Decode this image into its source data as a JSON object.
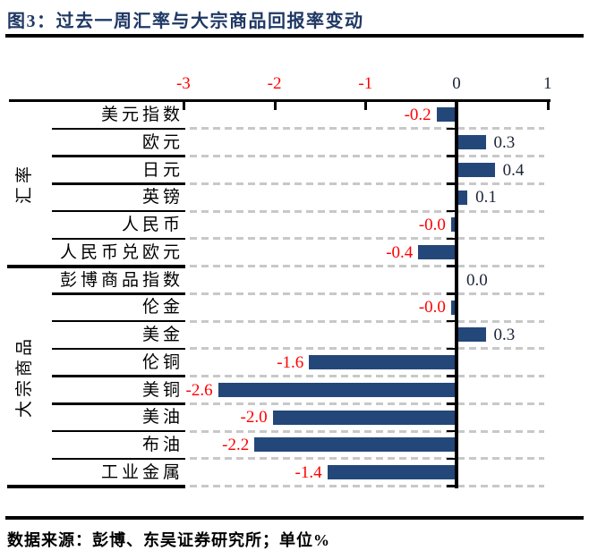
{
  "figure": {
    "title": "图3：过去一周汇率与大宗商品回报率变动",
    "source_note": "数据来源：彭博、东吴证券研究所；单位%"
  },
  "colors": {
    "title": "#1F3864",
    "bar": "#24477A",
    "negative_text": "#FF0000",
    "positive_text": "#1B2437",
    "axis_line": "#000000",
    "gridline_dash": "#C8C8C8",
    "source_text": "#000000"
  },
  "chart_data": {
    "type": "bar",
    "orientation": "horizontal",
    "title": "过去一周汇率与大宗商品回报率变动",
    "unit": "%",
    "xlim": [
      -3,
      1
    ],
    "x_ticks": [
      {
        "label": "-3",
        "value": -3
      },
      {
        "label": "-2",
        "value": -2
      },
      {
        "label": "-1",
        "value": -1
      },
      {
        "label": "0",
        "value": 0
      },
      {
        "label": "1",
        "value": 1
      }
    ],
    "grid": "dashed-horizontal",
    "legend": "none",
    "groups": [
      {
        "name": "汇率",
        "rows": [
          {
            "label": "美元指数",
            "display": "-0.2",
            "value": -0.2
          },
          {
            "label": "欧元",
            "display": "0.3",
            "value": 0.3
          },
          {
            "label": "日元",
            "display": "0.4",
            "value": 0.4
          },
          {
            "label": "英镑",
            "display": "0.1",
            "value": 0.1
          },
          {
            "label": "人民币",
            "display": "-0.0",
            "value": -0.04
          },
          {
            "label": "人民币兑欧元",
            "display": "-0.4",
            "value": -0.4
          }
        ]
      },
      {
        "name": "大宗商品",
        "rows": [
          {
            "label": "彭博商品指数",
            "display": "0.0",
            "value": 0.0
          },
          {
            "label": "伦金",
            "display": "-0.0",
            "value": -0.04
          },
          {
            "label": "美金",
            "display": "0.3",
            "value": 0.3
          },
          {
            "label": "伦铜",
            "display": "-1.6",
            "value": -1.6
          },
          {
            "label": "美铜",
            "display": "-2.6",
            "value": -2.6
          },
          {
            "label": "美油",
            "display": "-2.0",
            "value": -2.0
          },
          {
            "label": "布油",
            "display": "-2.2",
            "value": -2.2
          },
          {
            "label": "工业金属",
            "display": "-1.4",
            "value": -1.4
          }
        ]
      }
    ]
  }
}
